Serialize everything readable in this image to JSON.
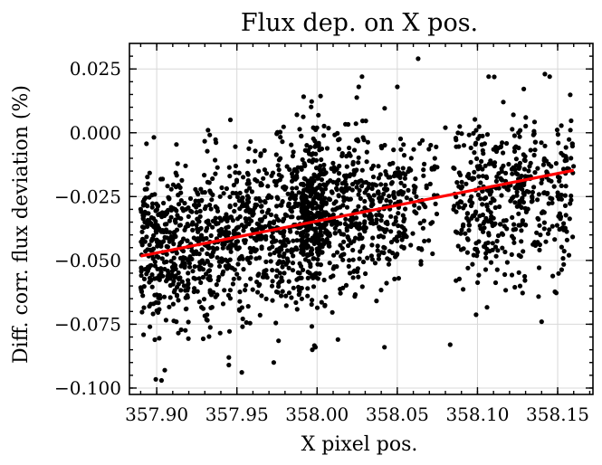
{
  "chart_data": {
    "type": "scatter",
    "title": "Flux dep. on X pos.",
    "xlabel": "X pixel pos.",
    "ylabel": "Diff. corr. flux deviation (%)",
    "xlim": [
      357.883,
      358.172
    ],
    "ylim": [
      -0.1025,
      0.035
    ],
    "xticks": [
      357.9,
      357.95,
      358.0,
      358.05,
      358.1,
      358.15
    ],
    "xtick_labels": [
      "357.90",
      "357.95",
      "358.00",
      "358.05",
      "358.10",
      "358.15"
    ],
    "yticks": [
      0.025,
      0.0,
      -0.025,
      -0.05,
      -0.075,
      -0.1
    ],
    "ytick_labels": [
      "0.025",
      "0.000",
      "−0.025",
      "−0.050",
      "−0.075",
      "−0.100"
    ],
    "grid": true,
    "colors": {
      "points": "#000000",
      "fit": "#ff0000"
    },
    "fit_line": {
      "x": [
        357.89,
        358.16
      ],
      "y": [
        -0.0483,
        -0.0147
      ]
    },
    "clusters": [
      {
        "x": [
          357.89,
          357.92
        ],
        "y_center": -0.045,
        "y_spread": 0.016,
        "n": 320
      },
      {
        "x": [
          357.92,
          357.945
        ],
        "y_center": -0.042,
        "y_spread": 0.015,
        "n": 210
      },
      {
        "x": [
          357.945,
          357.975
        ],
        "y_center": -0.038,
        "y_spread": 0.017,
        "n": 260
      },
      {
        "x": [
          357.975,
          357.99
        ],
        "y_center": -0.036,
        "y_spread": 0.017,
        "n": 160
      },
      {
        "x": [
          357.99,
          358.005
        ],
        "y_center": -0.031,
        "y_spread": 0.016,
        "n": 330
      },
      {
        "x": [
          358.005,
          358.03
        ],
        "y_center": -0.03,
        "y_spread": 0.015,
        "n": 230
      },
      {
        "x": [
          358.03,
          358.055
        ],
        "y_center": -0.027,
        "y_spread": 0.014,
        "n": 190
      },
      {
        "x": [
          358.055,
          358.075
        ],
        "y_center": -0.024,
        "y_spread": 0.013,
        "n": 60
      },
      {
        "x": [
          358.085,
          358.11
        ],
        "y_center": -0.027,
        "y_spread": 0.015,
        "n": 170
      },
      {
        "x": [
          358.11,
          358.13
        ],
        "y_center": -0.024,
        "y_spread": 0.015,
        "n": 150
      },
      {
        "x": [
          358.13,
          358.16
        ],
        "y_center": -0.022,
        "y_spread": 0.015,
        "n": 150
      }
    ],
    "outliers": [
      {
        "x": 358.063,
        "y": 0.029
      },
      {
        "x": 358.028,
        "y": 0.022
      },
      {
        "x": 358.026,
        "y": 0.018
      },
      {
        "x": 358.107,
        "y": 0.022
      },
      {
        "x": 358.142,
        "y": 0.023
      },
      {
        "x": 358.145,
        "y": 0.022
      },
      {
        "x": 358.05,
        "y": 0.018
      },
      {
        "x": 357.903,
        "y": -0.097
      },
      {
        "x": 357.905,
        "y": -0.093
      },
      {
        "x": 357.945,
        "y": -0.091
      },
      {
        "x": 357.945,
        "y": -0.088
      },
      {
        "x": 357.973,
        "y": -0.09
      },
      {
        "x": 357.997,
        "y": -0.085
      },
      {
        "x": 357.999,
        "y": -0.084
      },
      {
        "x": 358.013,
        "y": -0.081
      },
      {
        "x": 358.042,
        "y": -0.084
      },
      {
        "x": 358.083,
        "y": -0.083
      },
      {
        "x": 358.14,
        "y": -0.074
      },
      {
        "x": 358.08,
        "y": 0.002
      },
      {
        "x": 357.932,
        "y": 0.001
      }
    ]
  }
}
